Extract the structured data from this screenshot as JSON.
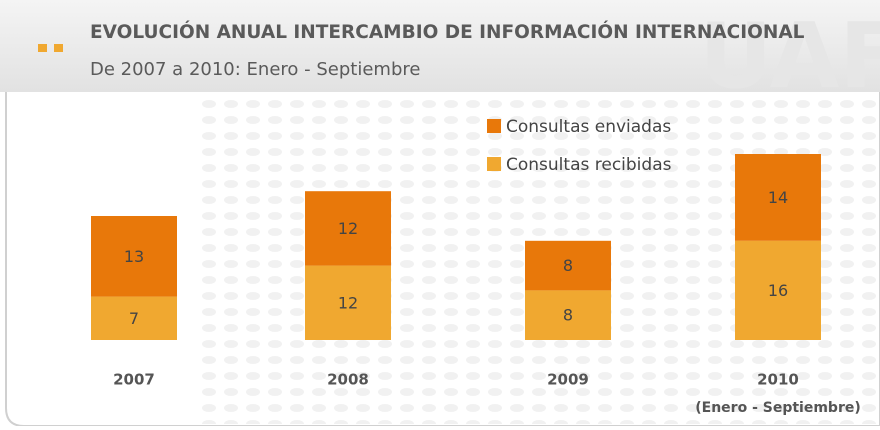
{
  "chart_data": {
    "type": "stacked_bar",
    "title": "EVOLUCIÓN ANUAL INTERCAMBIO DE INFORMACIÓN INTERNACIONAL",
    "subtitle": "De 2007 a 2010: Enero - Septiembre",
    "categories": [
      "2007",
      "2008",
      "2009",
      "2010"
    ],
    "annotations": [
      "(Enero - Septiembre)"
    ],
    "series": [
      {
        "name": "Consultas enviadas",
        "color": "#e8780a",
        "values": [
          13,
          12,
          8,
          14
        ]
      },
      {
        "name": "Consultas recibidas",
        "color": "#f0a830",
        "values": [
          7,
          12,
          8,
          16
        ]
      }
    ],
    "legend": "top-right"
  }
}
